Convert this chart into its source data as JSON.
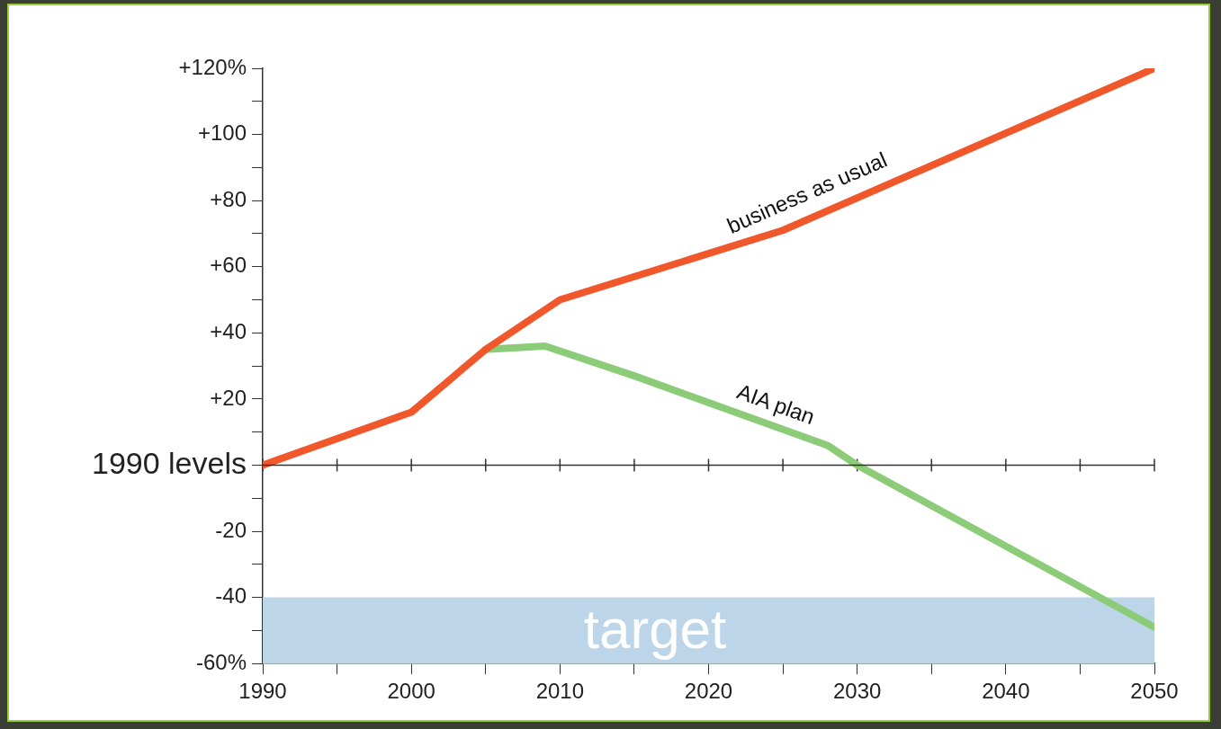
{
  "chart_data": {
    "type": "line",
    "x": [
      1990,
      2000,
      2005,
      2010,
      2025,
      2050
    ],
    "series": [
      {
        "name": "business as usual",
        "color": "#f0582c",
        "values": [
          0,
          16,
          35,
          50,
          71,
          120
        ]
      },
      {
        "name": "AIA plan",
        "color": "#8ccc78",
        "x": [
          2005,
          2009,
          2015,
          2028,
          2030,
          2050
        ],
        "values": [
          35,
          36,
          27,
          6,
          0,
          -49
        ]
      }
    ],
    "xlim": [
      1990,
      2050
    ],
    "xticks": [
      1990,
      {
        "value": 1995,
        "label": null
      },
      2000,
      {
        "value": 2005,
        "label": null
      },
      2010,
      {
        "value": 2015,
        "label": null
      },
      2020,
      {
        "value": 2025,
        "label": null
      },
      2030,
      {
        "value": 2035,
        "label": null
      },
      2040,
      {
        "value": 2045,
        "label": null
      },
      2050
    ],
    "ylim": [
      -60,
      120
    ],
    "yticks": [
      {
        "value": -60,
        "label": "-60%"
      },
      {
        "value": -50,
        "label": null
      },
      {
        "value": -40,
        "label": "-40"
      },
      {
        "value": -30,
        "label": null
      },
      {
        "value": -20,
        "label": "-20"
      },
      {
        "value": -10,
        "label": null
      },
      {
        "value": 0,
        "label": null
      },
      {
        "value": 10,
        "label": null
      },
      {
        "value": 20,
        "label": "+20"
      },
      {
        "value": 30,
        "label": null
      },
      {
        "value": 40,
        "label": "+40"
      },
      {
        "value": 50,
        "label": null
      },
      {
        "value": 60,
        "label": "+60"
      },
      {
        "value": 70,
        "label": null
      },
      {
        "value": 80,
        "label": "+80"
      },
      {
        "value": 90,
        "label": null
      },
      {
        "value": 100,
        "label": "+100"
      },
      {
        "value": 110,
        "label": null
      },
      {
        "value": 120,
        "label": "+120%"
      }
    ],
    "ref_lines": [
      {
        "axis": "y",
        "value": 0,
        "label": "1990 levels",
        "color": "#333333"
      }
    ],
    "bands": [
      {
        "axis": "y",
        "from": -60,
        "to": -40,
        "label": "target",
        "color": "#bcd5e8"
      }
    ],
    "grid": false,
    "legend": false,
    "marker": "none",
    "line_style": "solid"
  }
}
